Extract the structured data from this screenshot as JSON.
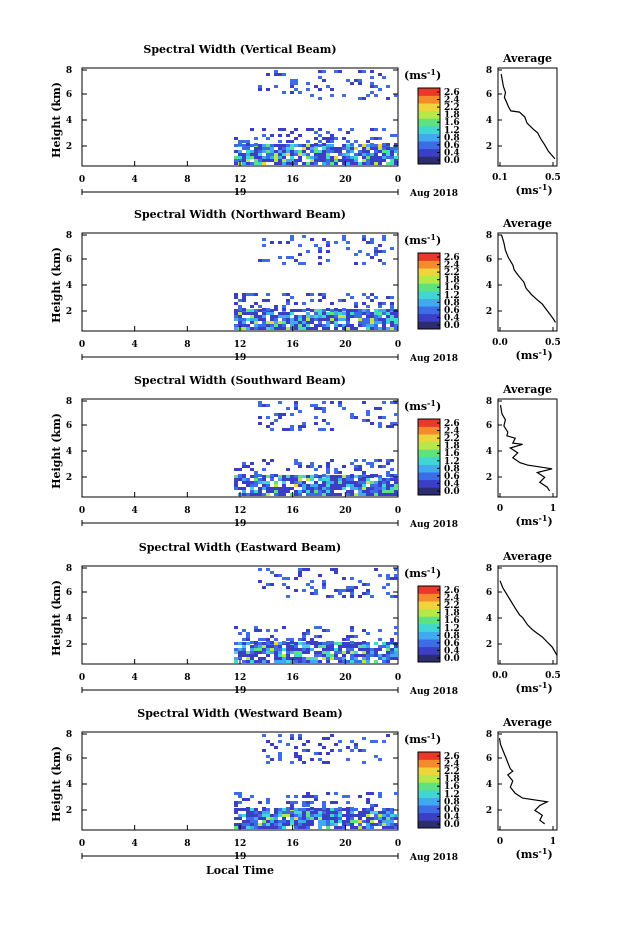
{
  "chart_data": [
    {
      "type": "heatmap",
      "title": "Spectral Width (Vertical Beam)",
      "ylabel": "Height (km)",
      "xticks": [
        "0",
        "4",
        "8",
        "12",
        "16",
        "20",
        "0"
      ],
      "yticks": [
        "8",
        "6",
        "4",
        "2"
      ],
      "date_day": "19",
      "date_label": "Aug 2018",
      "ylim": [
        0,
        8
      ],
      "colorbar": {
        "unit": "(ms",
        "unit_sup": "-1",
        "unit_close": ")",
        "ticks": [
          "2.6",
          "2.4",
          "2.2",
          "1.8",
          "1.6",
          "1.2",
          "0.8",
          "0.6",
          "0.4",
          "0.0"
        ]
      },
      "profile": {
        "title": "Average",
        "xticks": [
          "0.1",
          "0.5"
        ],
        "xlim": [
          0.05,
          0.6
        ],
        "yticks": [
          "8",
          "6",
          "4",
          "2"
        ],
        "xlabel": "(ms",
        "xlabel_sup": "-1",
        "xlabel_close": ")",
        "points": [
          [
            0.08,
            7.5
          ],
          [
            0.09,
            7.0
          ],
          [
            0.1,
            6.5
          ],
          [
            0.12,
            6.0
          ],
          [
            0.11,
            5.6
          ],
          [
            0.13,
            5.2
          ],
          [
            0.15,
            4.8
          ],
          [
            0.17,
            4.5
          ],
          [
            0.25,
            4.4
          ],
          [
            0.3,
            4.0
          ],
          [
            0.32,
            3.5
          ],
          [
            0.38,
            3.0
          ],
          [
            0.42,
            2.7
          ],
          [
            0.45,
            2.2
          ],
          [
            0.48,
            1.8
          ],
          [
            0.5,
            1.5
          ],
          [
            0.52,
            1.2
          ],
          [
            0.55,
            0.9
          ],
          [
            0.58,
            0.6
          ]
        ]
      }
    },
    {
      "type": "heatmap",
      "title": "Spectral Width (Northward Beam)",
      "ylabel": "Height (km)",
      "xticks": [
        "0",
        "4",
        "8",
        "12",
        "16",
        "20",
        "0"
      ],
      "yticks": [
        "8",
        "6",
        "4",
        "2"
      ],
      "date_day": "19",
      "date_label": "Aug 2018",
      "ylim": [
        0,
        8
      ],
      "colorbar": {
        "unit": "(ms",
        "unit_sup": "-1",
        "unit_close": ")",
        "ticks": [
          "2.6",
          "2.4",
          "2.2",
          "1.8",
          "1.6",
          "1.2",
          "0.8",
          "0.6",
          "0.4",
          "0.0"
        ]
      },
      "profile": {
        "title": "Average",
        "xticks": [
          "0.0",
          "0.5"
        ],
        "xlim": [
          0,
          0.8
        ],
        "yticks": [
          "8",
          "6",
          "4",
          "2"
        ],
        "xlabel": "(ms",
        "xlabel_sup": "-1",
        "xlabel_close": ")",
        "points": [
          [
            0.05,
            7.8
          ],
          [
            0.08,
            7.2
          ],
          [
            0.1,
            6.6
          ],
          [
            0.14,
            6.0
          ],
          [
            0.2,
            5.4
          ],
          [
            0.22,
            5.0
          ],
          [
            0.28,
            4.5
          ],
          [
            0.35,
            4.0
          ],
          [
            0.38,
            3.5
          ],
          [
            0.45,
            3.0
          ],
          [
            0.52,
            2.6
          ],
          [
            0.6,
            2.2
          ],
          [
            0.65,
            1.8
          ],
          [
            0.7,
            1.4
          ],
          [
            0.75,
            1.0
          ],
          [
            0.78,
            0.7
          ]
        ]
      }
    },
    {
      "type": "heatmap",
      "title": "Spectral Width (Southward Beam)",
      "ylabel": "Height (km)",
      "xticks": [
        "0",
        "4",
        "8",
        "12",
        "16",
        "20",
        "0"
      ],
      "yticks": [
        "8",
        "6",
        "4",
        "2"
      ],
      "date_day": "19",
      "date_label": "Aug 2018",
      "ylim": [
        0,
        8
      ],
      "colorbar": {
        "unit": "(ms",
        "unit_sup": "-1",
        "unit_close": ")",
        "ticks": [
          "2.6",
          "2.4",
          "2.2",
          "1.8",
          "1.6",
          "1.2",
          "0.8",
          "0.6",
          "0.4",
          "0.0"
        ]
      },
      "profile": {
        "title": "Average",
        "xticks": [
          "0",
          "1"
        ],
        "xlim": [
          0,
          1.2
        ],
        "yticks": [
          "8",
          "6",
          "4",
          "2"
        ],
        "xlabel": "(ms",
        "xlabel_sup": "-1",
        "xlabel_close": ")",
        "points": [
          [
            0.05,
            7.5
          ],
          [
            0.08,
            6.8
          ],
          [
            0.15,
            6.3
          ],
          [
            0.12,
            5.8
          ],
          [
            0.2,
            5.3
          ],
          [
            0.18,
            5.0
          ],
          [
            0.35,
            4.8
          ],
          [
            0.3,
            4.4
          ],
          [
            0.5,
            4.3
          ],
          [
            0.25,
            4.0
          ],
          [
            0.4,
            3.6
          ],
          [
            0.3,
            3.2
          ],
          [
            0.45,
            2.8
          ],
          [
            0.6,
            2.6
          ],
          [
            1.1,
            2.3
          ],
          [
            0.8,
            2.0
          ],
          [
            0.95,
            1.6
          ],
          [
            0.85,
            1.2
          ],
          [
            1.0,
            0.8
          ],
          [
            1.05,
            0.5
          ]
        ]
      }
    },
    {
      "type": "heatmap",
      "title": "Spectral Width (Eastward Beam)",
      "ylabel": "Height (km)",
      "xticks": [
        "0",
        "4",
        "8",
        "12",
        "16",
        "20",
        "0"
      ],
      "yticks": [
        "8",
        "6",
        "4",
        "2"
      ],
      "date_day": "19",
      "date_label": "Aug 2018",
      "ylim": [
        0,
        8
      ],
      "colorbar": {
        "unit": "(ms",
        "unit_sup": "-1",
        "unit_close": ")",
        "ticks": [
          "2.6",
          "2.4",
          "2.2",
          "1.8",
          "1.6",
          "1.2",
          "0.8",
          "0.6",
          "0.4",
          "0.0"
        ]
      },
      "profile": {
        "title": "Average",
        "xticks": [
          "0.0",
          "0.5"
        ],
        "xlim": [
          0,
          0.6
        ],
        "yticks": [
          "8",
          "6",
          "4",
          "2"
        ],
        "xlabel": "(ms",
        "xlabel_sup": "-1",
        "xlabel_close": ")",
        "points": [
          [
            0.02,
            6.8
          ],
          [
            0.05,
            6.2
          ],
          [
            0.18,
            4.5
          ],
          [
            0.22,
            4.0
          ],
          [
            0.25,
            3.8
          ],
          [
            0.3,
            3.2
          ],
          [
            0.35,
            2.8
          ],
          [
            0.4,
            2.5
          ],
          [
            0.45,
            2.2
          ],
          [
            0.5,
            1.8
          ],
          [
            0.55,
            1.4
          ],
          [
            0.58,
            1.0
          ],
          [
            0.6,
            0.7
          ]
        ]
      }
    },
    {
      "type": "heatmap",
      "title": "Spectral Width (Westward Beam)",
      "ylabel": "Height (km)",
      "xticks": [
        "0",
        "4",
        "8",
        "12",
        "16",
        "20",
        "0"
      ],
      "yticks": [
        "8",
        "6",
        "4",
        "2"
      ],
      "date_day": "19",
      "date_label": "Aug 2018",
      "xlabel": "Local Time",
      "ylim": [
        0,
        8
      ],
      "colorbar": {
        "unit": "(ms",
        "unit_sup": "-1",
        "unit_close": ")",
        "ticks": [
          "2.6",
          "2.4",
          "2.2",
          "1.8",
          "1.6",
          "1.2",
          "0.8",
          "0.6",
          "0.4",
          "0.0"
        ]
      },
      "profile": {
        "title": "Average",
        "xticks": [
          "0",
          "1"
        ],
        "xlim": [
          0,
          1.2
        ],
        "yticks": [
          "8",
          "6",
          "4",
          "2"
        ],
        "xlabel": "(ms",
        "xlabel_sup": "-1",
        "xlabel_close": ")",
        "points": [
          [
            0.03,
            7.5
          ],
          [
            0.05,
            7.0
          ],
          [
            0.1,
            6.5
          ],
          [
            0.15,
            6.0
          ],
          [
            0.2,
            5.5
          ],
          [
            0.25,
            5.0
          ],
          [
            0.3,
            4.8
          ],
          [
            0.2,
            4.5
          ],
          [
            0.3,
            4.0
          ],
          [
            0.25,
            3.5
          ],
          [
            0.35,
            3.0
          ],
          [
            0.5,
            2.6
          ],
          [
            1.0,
            2.3
          ],
          [
            0.85,
            2.0
          ],
          [
            0.75,
            1.6
          ],
          [
            0.9,
            1.2
          ],
          [
            0.85,
            0.8
          ],
          [
            0.95,
            0.5
          ]
        ]
      }
    }
  ],
  "colors": {
    "scale": [
      "#2c2d6e",
      "#3a3fc6",
      "#3d6de6",
      "#41a9f0",
      "#3fd6d3",
      "#5ee27f",
      "#b6e84a",
      "#f0d43c",
      "#f58b2c",
      "#e8392a"
    ]
  }
}
